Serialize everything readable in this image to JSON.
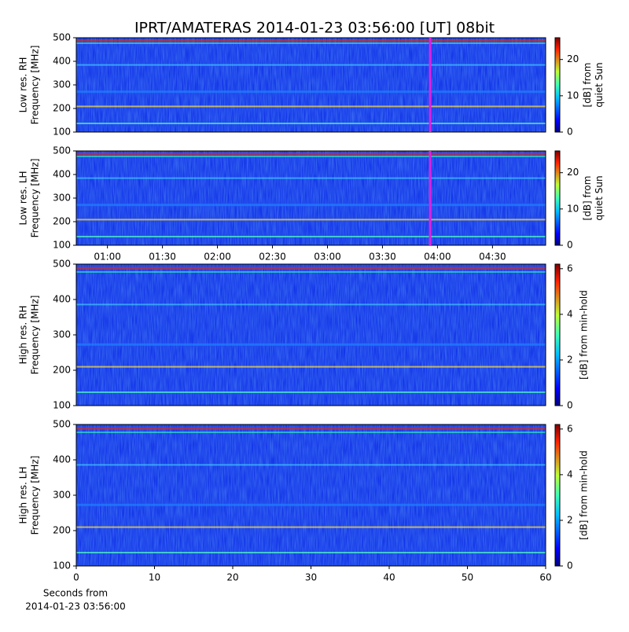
{
  "title": "IPRT/AMATERAS 2014-01-23 03:56:00 [UT]   08bit",
  "chart_data": [
    {
      "type": "spectrogram",
      "ylabel": [
        "Low res. RH",
        "Frequency [MHz]"
      ],
      "ylim": [
        100,
        500
      ],
      "yticks": [
        100,
        200,
        300,
        400,
        500
      ],
      "xlim": [
        43,
        299
      ],
      "marker_x": 236,
      "marker_color": "#e020e0",
      "colorbar": {
        "label": [
          "[dB] from",
          "quiet Sun"
        ],
        "lim": [
          0,
          26
        ],
        "ticks": [
          0,
          10,
          20
        ]
      }
    },
    {
      "type": "spectrogram",
      "ylabel": [
        "Low res. LH",
        "Frequency [MHz]"
      ],
      "ylim": [
        100,
        500
      ],
      "yticks": [
        100,
        200,
        300,
        400,
        500
      ],
      "xlim": [
        43,
        299
      ],
      "marker_x": 236,
      "marker_color": "#e020e0",
      "xticks": [
        {
          "value": 60,
          "label": "01:00"
        },
        {
          "value": 90,
          "label": "01:30"
        },
        {
          "value": 120,
          "label": "02:00"
        },
        {
          "value": 150,
          "label": "02:30"
        },
        {
          "value": 180,
          "label": "03:00"
        },
        {
          "value": 210,
          "label": "03:30"
        },
        {
          "value": 240,
          "label": "04:00"
        },
        {
          "value": 270,
          "label": "04:30"
        }
      ],
      "xticks_position": "bottom",
      "colorbar": {
        "label": [
          "[dB] from",
          "quiet Sun"
        ],
        "lim": [
          0,
          26
        ],
        "ticks": [
          0,
          10,
          20
        ]
      }
    },
    {
      "type": "spectrogram",
      "ylabel": [
        "High res. RH",
        "Frequency [MHz]"
      ],
      "ylim": [
        100,
        500
      ],
      "yticks": [
        100,
        200,
        300,
        400,
        500
      ],
      "xlim": [
        0,
        60
      ],
      "colorbar": {
        "label": [
          "[dB] from min-hold"
        ],
        "lim": [
          0,
          6.2
        ],
        "ticks": [
          0,
          2,
          4,
          6
        ]
      }
    },
    {
      "type": "spectrogram",
      "ylabel": [
        "High res. LH",
        "Frequency [MHz]"
      ],
      "ylim": [
        100,
        500
      ],
      "yticks": [
        100,
        200,
        300,
        400,
        500
      ],
      "xlim": [
        0,
        60
      ],
      "xticks": [
        0,
        10,
        20,
        30,
        40,
        50,
        60
      ],
      "xticks_position": "bottom",
      "xlabel": [
        "Seconds from",
        "2014-01-23 03:56:00"
      ],
      "colorbar": {
        "label": [
          "[dB] from min-hold"
        ],
        "lim": [
          0,
          6.2
        ],
        "ticks": [
          0,
          2,
          4,
          6
        ]
      }
    }
  ]
}
